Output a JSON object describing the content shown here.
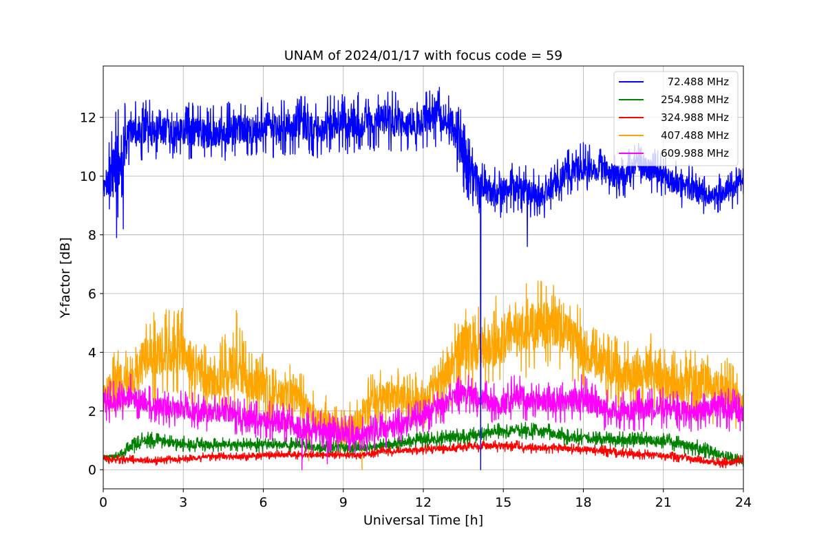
{
  "chart_data": {
    "type": "line",
    "title": "UNAM of 2024/01/17 with focus code = 59",
    "xlabel": "Universal Time [h]",
    "ylabel": "Y-factor [dB]",
    "xlim": [
      0,
      24
    ],
    "ylim": [
      -0.65,
      13.75
    ],
    "xticks": [
      0,
      3,
      6,
      9,
      12,
      15,
      18,
      21,
      24
    ],
    "yticks": [
      0,
      2,
      4,
      6,
      8,
      10,
      12
    ],
    "grid": true,
    "legend_position": "top-right",
    "x": [
      0,
      0.5,
      1,
      1.5,
      2,
      2.5,
      3,
      3.5,
      4,
      4.5,
      5,
      5.5,
      6,
      6.5,
      7,
      7.5,
      8,
      8.5,
      9,
      9.5,
      10,
      10.5,
      11,
      11.5,
      12,
      12.5,
      13,
      13.5,
      14,
      14.5,
      15,
      15.5,
      16,
      16.5,
      17,
      17.5,
      18,
      18.5,
      19,
      19.5,
      20,
      20.5,
      21,
      21.5,
      22,
      22.5,
      23,
      23.5,
      24
    ],
    "series": [
      {
        "name": "72.488 MHz",
        "color": "#0000ff",
        "values": [
          9.6,
          11.5,
          11.3,
          11.4,
          11.5,
          11.4,
          11.4,
          11.5,
          11.3,
          11.5,
          11.5,
          11.4,
          11.5,
          11.6,
          11.5,
          11.6,
          11.5,
          11.6,
          11.6,
          11.7,
          11.7,
          11.8,
          11.7,
          11.7,
          11.8,
          11.9,
          11.8,
          10.6,
          9.7,
          9.4,
          9.4,
          9.6,
          9.4,
          9.3,
          9.7,
          10.1,
          10.2,
          10.1,
          10.0,
          9.9,
          10.4,
          10.2,
          10.0,
          9.7,
          9.6,
          9.3,
          9.4,
          9.6,
          9.8
        ],
        "lows": [
          9.0,
          8.2,
          10.4,
          10.5,
          10.5,
          10.5,
          10.6,
          10.4,
          10.5,
          10.5,
          10.5,
          10.6,
          10.6,
          10.5,
          10.7,
          10.7,
          10.6,
          10.7,
          10.7,
          10.8,
          10.8,
          10.9,
          10.8,
          10.8,
          10.9,
          11.0,
          10.8,
          9.3,
          8.8,
          8.5,
          8.6,
          8.7,
          8.6,
          8.5,
          8.9,
          9.3,
          9.4,
          9.3,
          9.2,
          9.1,
          9.6,
          9.4,
          9.2,
          8.9,
          8.8,
          8.6,
          8.6,
          8.8,
          9.2
        ],
        "highs": [
          10.2,
          12.5,
          12.5,
          12.6,
          12.6,
          12.4,
          12.5,
          12.5,
          12.4,
          12.6,
          12.6,
          12.6,
          12.7,
          12.7,
          12.6,
          12.8,
          12.6,
          12.8,
          12.8,
          12.9,
          12.9,
          13.0,
          12.9,
          12.8,
          12.9,
          13.1,
          12.9,
          12.3,
          10.6,
          10.3,
          10.4,
          10.5,
          10.3,
          10.2,
          10.6,
          11.0,
          11.2,
          11.0,
          10.9,
          10.8,
          11.3,
          11.0,
          10.8,
          10.5,
          10.4,
          10.1,
          10.1,
          10.3,
          10.4
        ],
        "spikes": [
          [
            0.5,
            7.9
          ],
          [
            0.75,
            8.2
          ],
          [
            14.15,
            0.0
          ],
          [
            15.9,
            7.6
          ]
        ]
      },
      {
        "name": "254.988 MHz",
        "color": "#008000",
        "values": [
          0.4,
          0.4,
          0.8,
          1.0,
          1.0,
          0.9,
          0.9,
          0.8,
          0.9,
          0.9,
          0.9,
          0.9,
          0.9,
          0.9,
          0.9,
          0.9,
          0.8,
          0.8,
          0.8,
          0.8,
          0.8,
          0.9,
          0.9,
          1.0,
          1.0,
          1.0,
          1.1,
          1.1,
          1.2,
          1.3,
          1.3,
          1.4,
          1.3,
          1.3,
          1.2,
          1.1,
          1.1,
          1.0,
          1.0,
          1.0,
          1.0,
          1.0,
          1.0,
          0.9,
          0.8,
          0.7,
          0.5,
          0.4,
          0.3
        ],
        "lows": [
          0.2,
          0.3,
          0.5,
          0.7,
          0.7,
          0.6,
          0.6,
          0.6,
          0.6,
          0.6,
          0.6,
          0.6,
          0.6,
          0.6,
          0.6,
          0.6,
          0.5,
          0.5,
          0.5,
          0.5,
          0.5,
          0.6,
          0.6,
          0.7,
          0.7,
          0.7,
          0.8,
          0.8,
          0.9,
          1.0,
          1.0,
          1.1,
          1.0,
          1.0,
          0.9,
          0.8,
          0.8,
          0.7,
          0.7,
          0.7,
          0.7,
          0.7,
          0.7,
          0.6,
          0.5,
          0.4,
          0.3,
          0.2,
          0.1
        ],
        "highs": [
          0.6,
          0.6,
          1.0,
          1.3,
          1.3,
          1.2,
          1.2,
          1.1,
          1.1,
          1.1,
          1.1,
          1.1,
          1.1,
          1.1,
          1.1,
          1.1,
          1.0,
          1.0,
          1.0,
          1.0,
          1.0,
          1.1,
          1.1,
          1.3,
          1.3,
          1.3,
          1.4,
          1.4,
          1.5,
          1.6,
          1.6,
          1.7,
          1.6,
          1.6,
          1.5,
          1.4,
          1.4,
          1.3,
          1.3,
          1.3,
          1.3,
          1.3,
          1.3,
          1.2,
          1.1,
          1.0,
          0.8,
          0.6,
          0.5
        ]
      },
      {
        "name": "324.988 MHz",
        "color": "#ff0000",
        "values": [
          0.35,
          0.35,
          0.35,
          0.3,
          0.3,
          0.35,
          0.35,
          0.4,
          0.45,
          0.45,
          0.45,
          0.45,
          0.5,
          0.5,
          0.5,
          0.5,
          0.5,
          0.5,
          0.5,
          0.5,
          0.55,
          0.6,
          0.6,
          0.65,
          0.65,
          0.7,
          0.7,
          0.75,
          0.8,
          0.8,
          0.8,
          0.8,
          0.75,
          0.75,
          0.75,
          0.7,
          0.7,
          0.65,
          0.6,
          0.55,
          0.5,
          0.5,
          0.45,
          0.4,
          0.35,
          0.3,
          0.2,
          0.25,
          0.35
        ],
        "lows": [
          0.2,
          0.2,
          0.2,
          0.15,
          0.15,
          0.2,
          0.2,
          0.25,
          0.3,
          0.3,
          0.3,
          0.3,
          0.35,
          0.35,
          0.35,
          0.35,
          0.35,
          0.35,
          0.35,
          0.35,
          0.4,
          0.45,
          0.45,
          0.5,
          0.5,
          0.55,
          0.55,
          0.6,
          0.6,
          0.6,
          0.6,
          0.6,
          0.55,
          0.55,
          0.55,
          0.5,
          0.5,
          0.45,
          0.4,
          0.4,
          0.35,
          0.35,
          0.3,
          0.25,
          0.2,
          0.1,
          0.05,
          0.05,
          0.2
        ],
        "highs": [
          0.5,
          0.5,
          0.5,
          0.45,
          0.45,
          0.5,
          0.5,
          0.55,
          0.6,
          0.6,
          0.6,
          0.6,
          0.65,
          0.65,
          0.65,
          0.65,
          0.65,
          0.65,
          0.65,
          0.65,
          0.7,
          0.8,
          0.8,
          0.85,
          0.85,
          0.9,
          0.9,
          0.95,
          1.0,
          1.0,
          1.0,
          1.0,
          0.95,
          0.95,
          0.95,
          0.9,
          0.9,
          0.85,
          0.8,
          0.75,
          0.7,
          0.7,
          0.65,
          0.6,
          0.55,
          0.45,
          0.4,
          0.45,
          0.5
        ]
      },
      {
        "name": "407.488 MHz",
        "color": "#ffa500",
        "values": [
          2.8,
          3.0,
          2.9,
          3.3,
          3.4,
          3.6,
          3.5,
          3.0,
          2.7,
          2.6,
          2.6,
          2.6,
          2.5,
          2.3,
          2.2,
          2.0,
          1.6,
          1.5,
          1.3,
          1.5,
          2.1,
          2.3,
          2.3,
          2.2,
          2.3,
          2.6,
          3.1,
          3.6,
          3.6,
          3.7,
          3.8,
          4.0,
          4.4,
          4.5,
          4.6,
          4.2,
          3.7,
          3.4,
          3.3,
          3.0,
          3.0,
          2.9,
          2.8,
          2.7,
          2.6,
          2.6,
          2.5,
          2.3,
          2.2
        ],
        "lows": [
          1.8,
          2.0,
          1.9,
          2.2,
          2.3,
          2.5,
          2.4,
          2.0,
          1.8,
          1.7,
          1.7,
          1.7,
          1.6,
          1.4,
          1.3,
          1.1,
          0.7,
          0.6,
          0.5,
          0.6,
          1.2,
          1.4,
          1.4,
          1.3,
          1.4,
          1.7,
          2.1,
          2.6,
          2.6,
          2.7,
          2.8,
          2.9,
          3.2,
          3.3,
          3.4,
          3.1,
          2.6,
          2.3,
          2.2,
          2.0,
          2.0,
          1.9,
          1.8,
          1.7,
          1.6,
          1.6,
          1.5,
          1.3,
          1.2
        ],
        "highs": [
          3.3,
          4.4,
          3.9,
          5.2,
          5.7,
          5.7,
          5.6,
          4.7,
          4.1,
          4.6,
          5.5,
          4.1,
          4.0,
          3.6,
          3.7,
          3.3,
          2.6,
          2.5,
          2.1,
          2.5,
          3.4,
          3.6,
          3.5,
          3.3,
          3.4,
          3.7,
          4.5,
          6.0,
          5.6,
          5.7,
          6.2,
          6.3,
          6.5,
          6.5,
          6.4,
          5.9,
          5.6,
          5.0,
          4.8,
          4.5,
          4.6,
          4.8,
          4.2,
          4.3,
          4.2,
          4.3,
          4.0,
          3.8,
          3.2
        ],
        "spikes": [
          [
            9.7,
            0.0
          ],
          [
            7.7,
            0.3
          ]
        ]
      },
      {
        "name": "609.988 MHz",
        "color": "#ff00ff",
        "values": [
          2.1,
          2.3,
          2.2,
          2.3,
          2.1,
          2.0,
          2.0,
          1.9,
          1.9,
          1.9,
          1.8,
          1.7,
          1.6,
          1.5,
          1.4,
          1.3,
          1.3,
          1.2,
          1.2,
          1.1,
          1.2,
          1.3,
          1.4,
          1.6,
          1.8,
          2.0,
          2.3,
          2.5,
          2.4,
          2.3,
          2.2,
          2.3,
          2.4,
          2.3,
          2.3,
          2.3,
          2.2,
          2.1,
          2.0,
          2.0,
          2.0,
          2.0,
          2.1,
          2.0,
          2.0,
          2.0,
          2.1,
          2.0,
          1.9
        ],
        "lows": [
          1.4,
          1.7,
          1.6,
          1.7,
          1.5,
          1.4,
          1.4,
          1.3,
          1.3,
          1.3,
          1.2,
          1.1,
          1.0,
          0.9,
          0.8,
          0.6,
          0.6,
          0.5,
          0.6,
          0.5,
          0.6,
          0.7,
          0.8,
          1.0,
          1.2,
          1.4,
          1.7,
          1.9,
          1.8,
          1.6,
          1.5,
          1.6,
          1.7,
          1.6,
          1.6,
          1.6,
          1.5,
          1.4,
          1.3,
          1.3,
          1.3,
          1.3,
          1.4,
          1.3,
          1.3,
          1.3,
          1.4,
          1.3,
          1.2
        ],
        "highs": [
          3.2,
          3.0,
          3.3,
          3.0,
          2.8,
          2.7,
          2.7,
          2.6,
          2.6,
          2.6,
          2.5,
          2.4,
          2.3,
          2.4,
          2.3,
          2.2,
          2.0,
          2.0,
          1.9,
          1.8,
          1.9,
          2.0,
          2.1,
          2.3,
          2.5,
          2.7,
          3.0,
          3.3,
          3.1,
          3.0,
          2.9,
          3.4,
          3.1,
          3.0,
          3.0,
          3.1,
          3.3,
          2.9,
          2.7,
          2.7,
          2.8,
          2.8,
          2.9,
          2.7,
          2.7,
          2.7,
          2.9,
          2.8,
          2.6
        ],
        "spikes": [
          [
            7.45,
            0.0
          ],
          [
            8.4,
            0.2
          ]
        ]
      }
    ]
  }
}
